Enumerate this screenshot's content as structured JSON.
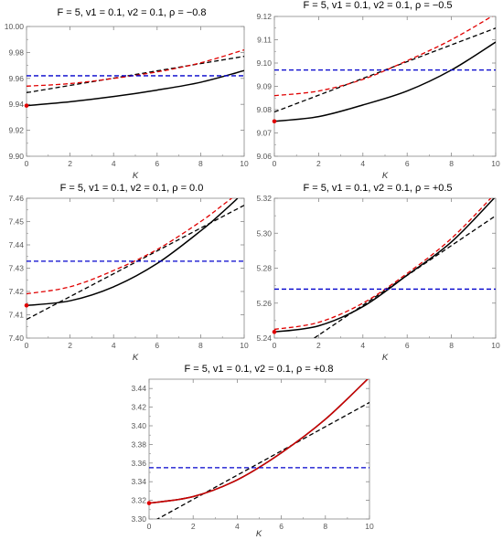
{
  "chart_data": [
    {
      "type": "line",
      "title": "F = 5,  v1 = 0.1,  v2 = 0.1,  ρ = −0.8",
      "xlabel": "K",
      "ylabel": "",
      "xlim": [
        0,
        10
      ],
      "ylim": [
        9.9,
        10.0
      ],
      "xticks": [
        "0",
        "2",
        "4",
        "6",
        "8",
        "10"
      ],
      "yticks": [
        "9.90",
        "9.92",
        "9.94",
        "9.96",
        "9.98",
        "10.00"
      ],
      "grid": false,
      "series": [
        {
          "style": "solid",
          "color": "#000000",
          "x": [
            0,
            2,
            4,
            6,
            8,
            10
          ],
          "y": [
            9.939,
            9.942,
            9.946,
            9.951,
            9.957,
            9.966
          ]
        },
        {
          "style": "dashed",
          "color": "#000000",
          "x": [
            0,
            10
          ],
          "y": [
            9.949,
            9.977
          ]
        },
        {
          "style": "dashed",
          "color": "#e00000",
          "x": [
            0,
            2,
            4,
            6,
            8,
            10
          ],
          "y": [
            9.954,
            9.956,
            9.96,
            9.965,
            9.972,
            9.982
          ]
        },
        {
          "style": "dashed",
          "color": "#0000cc",
          "x": [
            0,
            10
          ],
          "y": [
            9.962,
            9.962
          ]
        }
      ],
      "markers": [
        {
          "x": 0,
          "y": 9.939,
          "color": "#e00000"
        }
      ]
    },
    {
      "type": "line",
      "title": "F = 5,  v1 = 0.1,  v2 = 0.1,  ρ = −0.5",
      "xlabel": "K",
      "ylabel": "",
      "xlim": [
        0,
        10
      ],
      "ylim": [
        9.06,
        9.12
      ],
      "xticks": [
        "0",
        "2",
        "4",
        "6",
        "8",
        "10"
      ],
      "yticks": [
        "9.06",
        "9.07",
        "9.08",
        "9.09",
        "9.10",
        "9.11",
        "9.12"
      ],
      "grid": false,
      "series": [
        {
          "style": "solid",
          "color": "#000000",
          "x": [
            0,
            2,
            4,
            6,
            8,
            10
          ],
          "y": [
            9.075,
            9.077,
            9.082,
            9.088,
            9.097,
            9.109
          ]
        },
        {
          "style": "dashed",
          "color": "#000000",
          "x": [
            0,
            10
          ],
          "y": [
            9.079,
            9.115
          ]
        },
        {
          "style": "dashed",
          "color": "#e00000",
          "x": [
            0,
            2,
            4,
            6,
            8,
            10
          ],
          "y": [
            9.086,
            9.088,
            9.093,
            9.101,
            9.11,
            9.121
          ]
        },
        {
          "style": "dashed",
          "color": "#0000cc",
          "x": [
            0,
            10
          ],
          "y": [
            9.097,
            9.097
          ]
        }
      ],
      "markers": [
        {
          "x": 0,
          "y": 9.075,
          "color": "#e00000"
        }
      ]
    },
    {
      "type": "line",
      "title": "F = 5,  v1 = 0.1,  v2 = 0.1,  ρ = 0.0",
      "xlabel": "K",
      "ylabel": "",
      "xlim": [
        0,
        10
      ],
      "ylim": [
        7.4,
        7.46
      ],
      "xticks": [
        "0",
        "2",
        "4",
        "6",
        "8",
        "10"
      ],
      "yticks": [
        "7.40",
        "7.41",
        "7.42",
        "7.43",
        "7.44",
        "7.45",
        "7.46"
      ],
      "grid": false,
      "series": [
        {
          "style": "solid",
          "color": "#000000",
          "x": [
            0,
            2,
            4,
            6,
            8,
            9,
            9.7
          ],
          "y": [
            7.414,
            7.416,
            7.422,
            7.432,
            7.446,
            7.454,
            7.46
          ]
        },
        {
          "style": "dashed",
          "color": "#000000",
          "x": [
            0,
            10
          ],
          "y": [
            7.408,
            7.457
          ]
        },
        {
          "style": "dashed",
          "color": "#e00000",
          "x": [
            0,
            2,
            4,
            6,
            8,
            9,
            9.7
          ],
          "y": [
            7.419,
            7.422,
            7.429,
            7.438,
            7.45,
            7.457,
            7.462
          ]
        },
        {
          "style": "dashed",
          "color": "#0000cc",
          "x": [
            0,
            10
          ],
          "y": [
            7.433,
            7.433
          ]
        }
      ],
      "markers": [
        {
          "x": 0,
          "y": 7.414,
          "color": "#e00000"
        }
      ]
    },
    {
      "type": "line",
      "title": "F = 5,  v1 = 0.1,  v2 = 0.1,  ρ = +0.5",
      "xlabel": "K",
      "ylabel": "",
      "xlim": [
        0,
        10
      ],
      "ylim": [
        5.24,
        5.32
      ],
      "xticks": [
        "0",
        "2",
        "4",
        "6",
        "8",
        "10"
      ],
      "yticks": [
        "5.24",
        "5.26",
        "5.28",
        "5.30",
        "5.32"
      ],
      "grid": false,
      "series": [
        {
          "style": "solid",
          "color": "#000000",
          "x": [
            0,
            2,
            4,
            6,
            8,
            10
          ],
          "y": [
            5.2435,
            5.247,
            5.258,
            5.276,
            5.295,
            5.321
          ]
        },
        {
          "style": "dashed",
          "color": "#000000",
          "x": [
            1.8,
            10
          ],
          "y": [
            5.24,
            5.31
          ]
        },
        {
          "style": "dashed",
          "color": "#e00000",
          "x": [
            0,
            2,
            4,
            6,
            8,
            10
          ],
          "y": [
            5.245,
            5.249,
            5.26,
            5.277,
            5.297,
            5.323
          ]
        },
        {
          "style": "dashed",
          "color": "#0000cc",
          "x": [
            0,
            10
          ],
          "y": [
            5.268,
            5.268
          ]
        }
      ],
      "markers": [
        {
          "x": 0,
          "y": 5.2435,
          "color": "#e00000"
        }
      ]
    },
    {
      "type": "line",
      "title": "F = 5,  v1 = 0.1,  v2 = 0.1,  ρ = +0.8",
      "xlabel": "K",
      "ylabel": "",
      "xlim": [
        0,
        10
      ],
      "ylim": [
        3.3,
        3.45
      ],
      "xticks": [
        "0",
        "2",
        "4",
        "6",
        "8",
        "10"
      ],
      "yticks": [
        "3.30",
        "3.32",
        "3.34",
        "3.36",
        "3.38",
        "3.40",
        "3.42",
        "3.44"
      ],
      "grid": false,
      "series": [
        {
          "style": "solid",
          "color": "#000000",
          "x": [
            0,
            2,
            4,
            6,
            8,
            10
          ],
          "y": [
            3.317,
            3.324,
            3.342,
            3.371,
            3.407,
            3.452
          ]
        },
        {
          "style": "dashed",
          "color": "#000000",
          "x": [
            0,
            10
          ],
          "y": [
            3.295,
            3.425
          ]
        },
        {
          "style": "solid",
          "color": "#cc0000",
          "x": [
            0,
            2,
            4,
            6,
            8,
            10
          ],
          "y": [
            3.317,
            3.324,
            3.342,
            3.371,
            3.407,
            3.452
          ]
        },
        {
          "style": "dashed",
          "color": "#0000cc",
          "x": [
            0,
            10
          ],
          "y": [
            3.355,
            3.355
          ]
        }
      ],
      "markers": [
        {
          "x": 0,
          "y": 3.317,
          "color": "#e00000"
        }
      ]
    }
  ]
}
